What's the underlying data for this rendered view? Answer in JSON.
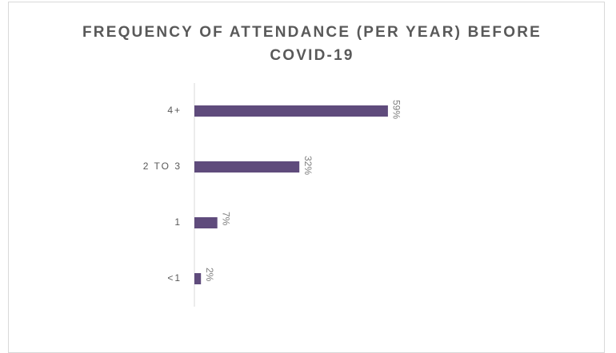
{
  "chart_data": {
    "type": "bar",
    "orientation": "horizontal",
    "title": "FREQUENCY OF ATTENDANCE (PER YEAR) BEFORE COVID-19",
    "categories": [
      "4+",
      "2 TO 3",
      "1",
      "<1"
    ],
    "values": [
      59,
      32,
      7,
      2
    ],
    "value_labels": [
      "59%",
      "32%",
      "7%",
      "2%"
    ],
    "color": "#5f4b7c",
    "xlim": [
      0,
      100
    ]
  }
}
